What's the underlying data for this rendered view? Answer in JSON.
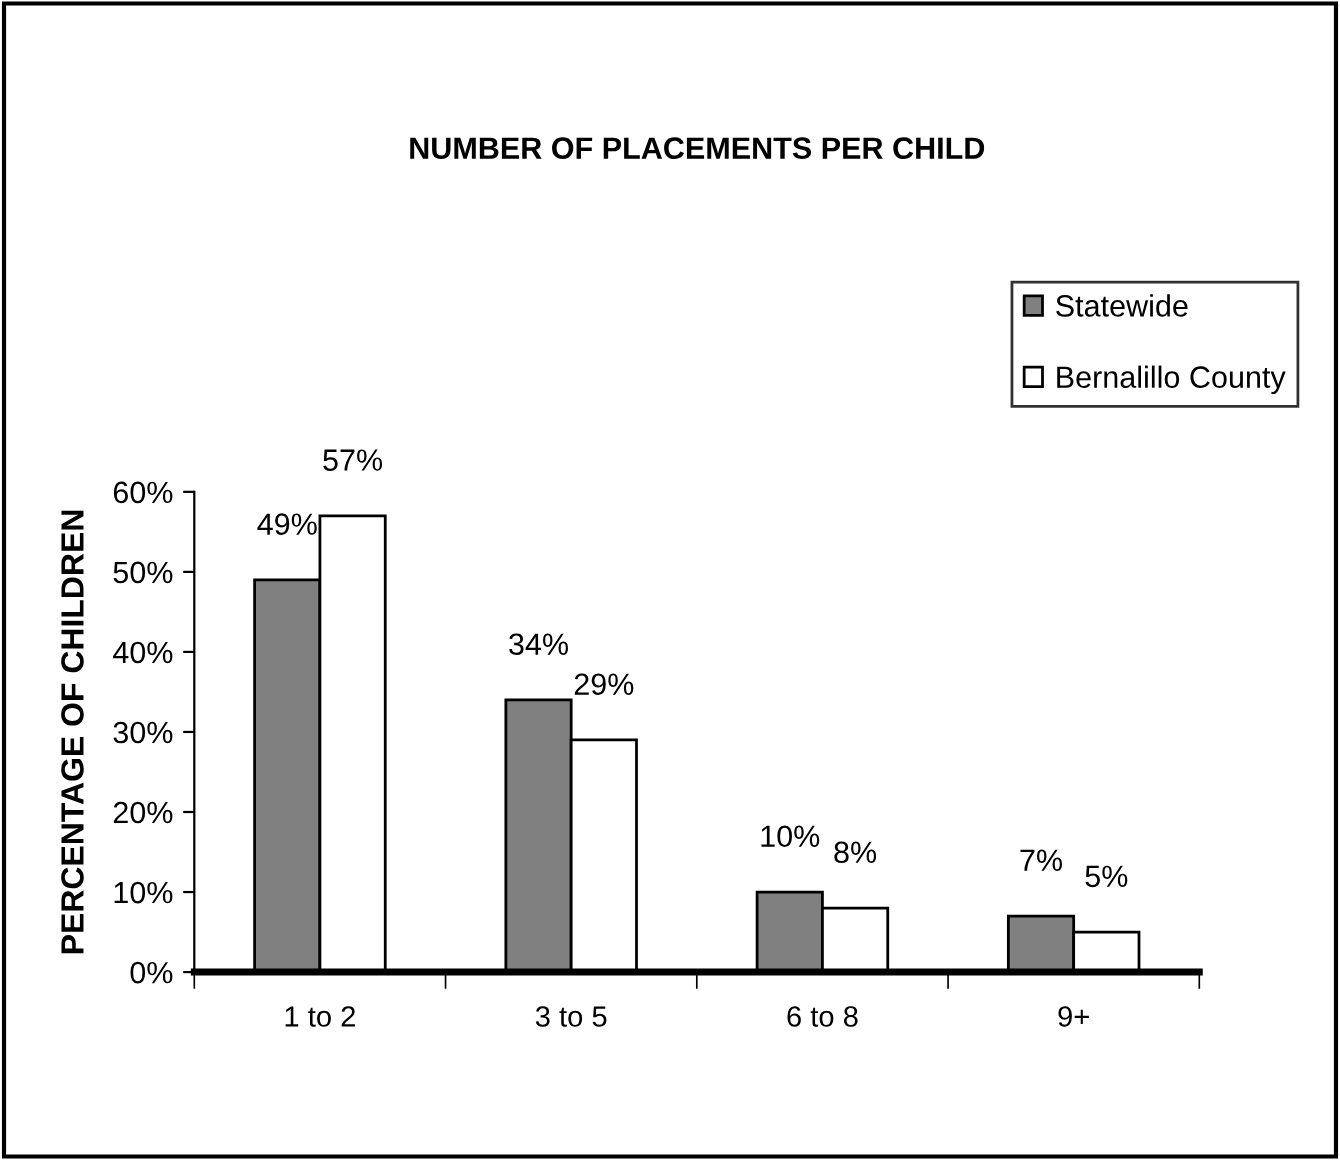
{
  "chart_data": {
    "type": "bar",
    "title": "NUMBER OF PLACEMENTS PER CHILD",
    "ylabel": "PERCENTAGE OF CHILDREN",
    "categories": [
      "1 to 2",
      "3 to 5",
      "6 to 8",
      "9+"
    ],
    "series": [
      {
        "name": "Statewide",
        "color": "#808080",
        "values": [
          49,
          34,
          10,
          7
        ],
        "value_labels": [
          "49%",
          "34%",
          "10%",
          "7%"
        ]
      },
      {
        "name": "Bernalillo County",
        "color": "#ffffff",
        "values": [
          57,
          29,
          8,
          5
        ],
        "value_labels": [
          "57%",
          "29%",
          "8%",
          "5%"
        ]
      }
    ],
    "ylim": [
      0,
      60
    ],
    "yticks": [
      {
        "value": 0,
        "label": "0%"
      },
      {
        "value": 10,
        "label": "10%"
      },
      {
        "value": 20,
        "label": "20%"
      },
      {
        "value": 30,
        "label": "30%"
      },
      {
        "value": 40,
        "label": "40%"
      },
      {
        "value": 50,
        "label": "50%"
      },
      {
        "value": 60,
        "label": "60%"
      }
    ],
    "grid": false,
    "legend": "top right"
  }
}
